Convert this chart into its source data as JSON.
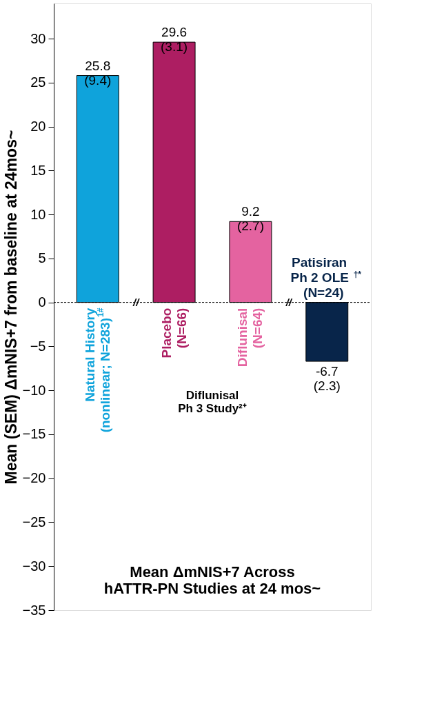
{
  "chart_data": {
    "type": "bar",
    "title": "Mean ΔmNIS+7 Across\nhATTR-PN Studies at 24 mos~",
    "ylabel": "Mean (SEM) ΔmNIS+7 from baseline at 24mos~",
    "categories": [
      "Natural History\n(nonlinear; N=283)$^{1#}$",
      "Placebo\n(N=66)",
      "Diflunisal\n(N=64)",
      "Patisiran\nPh 2 OLE$^{†*}$\n(N=24)"
    ],
    "values": [
      25.8,
      29.6,
      9.2,
      -6.7
    ],
    "colors": [
      "#0fa3db",
      "#ad1e62",
      "#e463a0",
      "#08254a"
    ],
    "value_labels": [
      "25.8\n(9.4)",
      "29.6\n(3.1)",
      "9.2\n(2.7)",
      "-6.7\n(2.3)"
    ],
    "ylim": [
      -35,
      34
    ],
    "yticks": [
      -35,
      -30,
      -25,
      -20,
      -15,
      -10,
      -5,
      0,
      5,
      10,
      15,
      20,
      25,
      30
    ],
    "ref_lines": [
      {
        "axis": "y",
        "value": 0,
        "line_style": "dashed",
        "color": "#000000"
      }
    ],
    "annotations": [
      "//",
      "//",
      "Diflunisal\nPh 3 Study²⁺"
    ],
    "grid": false
  }
}
